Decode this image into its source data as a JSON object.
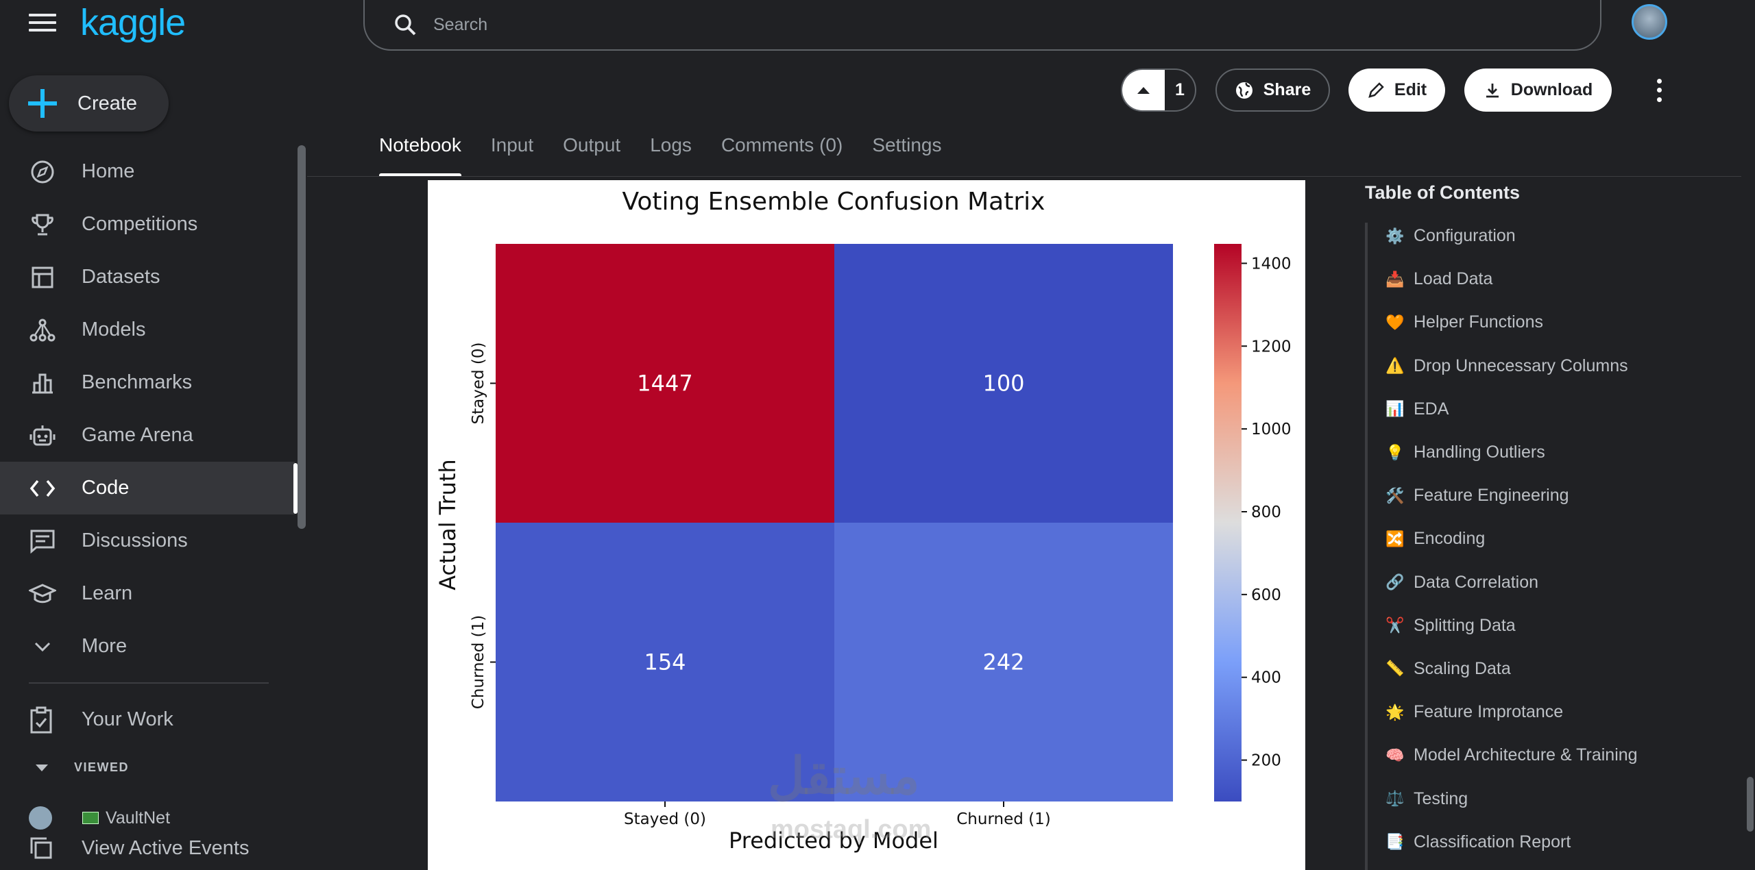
{
  "header": {
    "logo": "kaggle",
    "search_placeholder": "Search",
    "vote_count": "1",
    "share_label": "Share",
    "edit_label": "Edit",
    "download_label": "Download"
  },
  "sidebar": {
    "create_label": "Create",
    "items": [
      {
        "label": "Home",
        "icon": "compass-icon"
      },
      {
        "label": "Competitions",
        "icon": "trophy-icon"
      },
      {
        "label": "Datasets",
        "icon": "table-icon"
      },
      {
        "label": "Models",
        "icon": "model-icon"
      },
      {
        "label": "Benchmarks",
        "icon": "bar-chart-icon"
      },
      {
        "label": "Game Arena",
        "icon": "robot-icon"
      },
      {
        "label": "Code",
        "icon": "code-icon"
      },
      {
        "label": "Discussions",
        "icon": "chat-icon"
      },
      {
        "label": "Learn",
        "icon": "graduation-cap-icon"
      },
      {
        "label": "More",
        "icon": "chevron-down-icon"
      }
    ],
    "your_work": "Your Work",
    "viewed_label": "VIEWED",
    "viewed_item": "VaultNet",
    "active_events": "View Active Events"
  },
  "tabs": [
    "Notebook",
    "Input",
    "Output",
    "Logs",
    "Comments (0)",
    "Settings"
  ],
  "toc": {
    "title": "Table of Contents",
    "items": [
      {
        "emoji": "⚙️",
        "label": "Configuration"
      },
      {
        "emoji": "📥",
        "label": "Load Data"
      },
      {
        "emoji": "🧡",
        "label": "Helper Functions"
      },
      {
        "emoji": "⚠️",
        "label": "Drop Unnecessary Columns"
      },
      {
        "emoji": "📊",
        "label": "EDA"
      },
      {
        "emoji": "💡",
        "label": "Handling Outliers"
      },
      {
        "emoji": "🛠️",
        "label": "Feature Engineering"
      },
      {
        "emoji": "🔀",
        "label": "Encoding"
      },
      {
        "emoji": "🔗",
        "label": "Data Correlation"
      },
      {
        "emoji": "✂️",
        "label": "Splitting Data"
      },
      {
        "emoji": "📏",
        "label": "Scaling Data"
      },
      {
        "emoji": "🌟",
        "label": "Feature Improtance"
      },
      {
        "emoji": "🧠",
        "label": "Model Architecture & Training"
      },
      {
        "emoji": "⚖️",
        "label": "Testing"
      },
      {
        "emoji": "📑",
        "label": "Classification Report"
      }
    ]
  },
  "watermark": {
    "arabic": "مستقل",
    "latin": "mostaql.com"
  },
  "chart_data": {
    "type": "heatmap",
    "title": "Voting Ensemble Confusion Matrix",
    "xlabel": "Predicted by Model",
    "ylabel": "Actual Truth",
    "x_categories": [
      "Stayed (0)",
      "Churned (1)"
    ],
    "y_categories": [
      "Stayed (0)",
      "Churned (1)"
    ],
    "values": [
      [
        1447,
        100
      ],
      [
        154,
        242
      ]
    ],
    "colormap": "coolwarm",
    "colorbar_range": [
      100,
      1447
    ],
    "colorbar_ticks": [
      200,
      400,
      600,
      800,
      1000,
      1200,
      1400
    ]
  }
}
